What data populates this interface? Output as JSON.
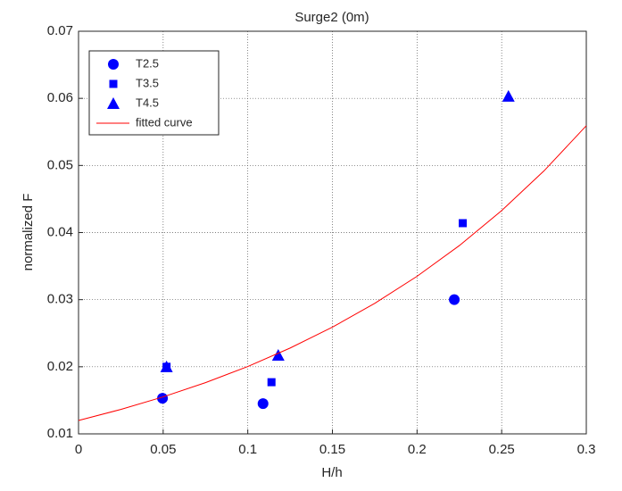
{
  "chart_data": {
    "type": "scatter",
    "title": "Surge2 (0m)",
    "xlabel": "H/h",
    "ylabel": "normalized F",
    "xlim": [
      0,
      0.3
    ],
    "xticks": [
      0,
      0.05,
      0.1,
      0.15,
      0.2,
      0.25,
      0.3
    ],
    "ylim": [
      0.01,
      0.07
    ],
    "yticks": [
      0.01,
      0.02,
      0.03,
      0.04,
      0.05,
      0.06,
      0.07
    ],
    "grid": true,
    "legend": "upper left",
    "series": [
      {
        "name": "T2.5",
        "color": "#0000ff",
        "marker": "circle",
        "x": [
          0.0496,
          0.109,
          0.222
        ],
        "values": [
          0.0153,
          0.0145,
          0.03
        ]
      },
      {
        "name": "T3.5",
        "color": "#0000ff",
        "marker": "square",
        "x": [
          0.052,
          0.114,
          0.227
        ],
        "values": [
          0.02,
          0.0177,
          0.0414
        ]
      },
      {
        "name": "T4.5",
        "color": "#0000ff",
        "marker": "triangle",
        "x": [
          0.052,
          0.118,
          0.254
        ],
        "values": [
          0.02,
          0.0217,
          0.0603
        ]
      },
      {
        "name": "fitted curve",
        "color": "#ff0000",
        "marker": "line",
        "x": [
          0,
          0.025,
          0.05,
          0.075,
          0.1,
          0.125,
          0.15,
          0.175,
          0.2,
          0.225,
          0.25,
          0.275,
          0.3
        ],
        "values": [
          0.012,
          0.01364,
          0.01551,
          0.01763,
          0.02004,
          0.02279,
          0.0259,
          0.02945,
          0.03348,
          0.03806,
          0.04327,
          0.04919,
          0.05592
        ]
      }
    ]
  }
}
